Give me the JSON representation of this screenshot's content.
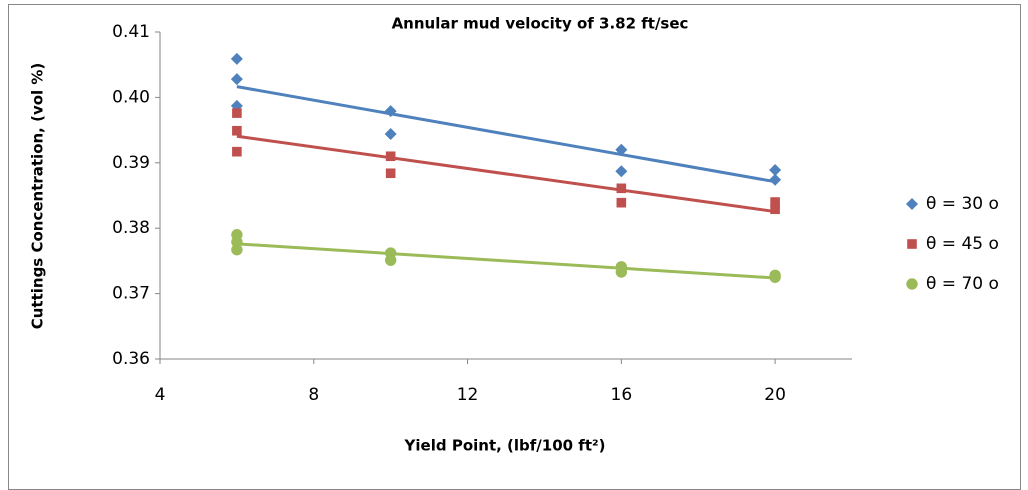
{
  "chart_data": {
    "type": "scatter",
    "title": "Annular mud velocity of 3.82 ft/sec",
    "x_label": "Yield Point, (lbf/100 ft²)",
    "y_label": "Cuttings Concentration, (vol %)",
    "xlim": [
      4,
      22
    ],
    "xticks": [
      4,
      8,
      12,
      16,
      20
    ],
    "ylim": [
      0.36,
      0.41
    ],
    "yticks": [
      0.36,
      0.37,
      0.38,
      0.39,
      {
        "value": 0.4,
        "label": "0.40"
      },
      0.41
    ],
    "grid": false,
    "trendline": true,
    "legend": "right",
    "series": [
      {
        "name": "θ = 30 o",
        "color": "#4F81BD",
        "marker": "diamond",
        "x": [
          6,
          6,
          6,
          10,
          10,
          16,
          16,
          20,
          20
        ],
        "values": [
          0.4059,
          0.4028,
          0.3987,
          0.3979,
          0.3944,
          0.392,
          0.3887,
          0.3889,
          0.3874
        ]
      },
      {
        "name": "θ = 45 o",
        "color": "#C0504D",
        "marker": "square",
        "x": [
          6,
          6,
          6,
          10,
          10,
          16,
          16,
          20,
          20
        ],
        "values": [
          0.3976,
          0.3949,
          0.3917,
          0.391,
          0.3884,
          0.3861,
          0.3839,
          0.384,
          0.3829
        ]
      },
      {
        "name": "θ = 70 o",
        "color": "#9BBB59",
        "marker": "circle",
        "x": [
          6,
          6,
          6,
          10,
          10,
          16,
          16,
          20,
          20
        ],
        "values": [
          0.379,
          0.3779,
          0.3767,
          0.3762,
          0.3751,
          0.3741,
          0.3733,
          0.3728,
          0.3725
        ]
      }
    ]
  }
}
